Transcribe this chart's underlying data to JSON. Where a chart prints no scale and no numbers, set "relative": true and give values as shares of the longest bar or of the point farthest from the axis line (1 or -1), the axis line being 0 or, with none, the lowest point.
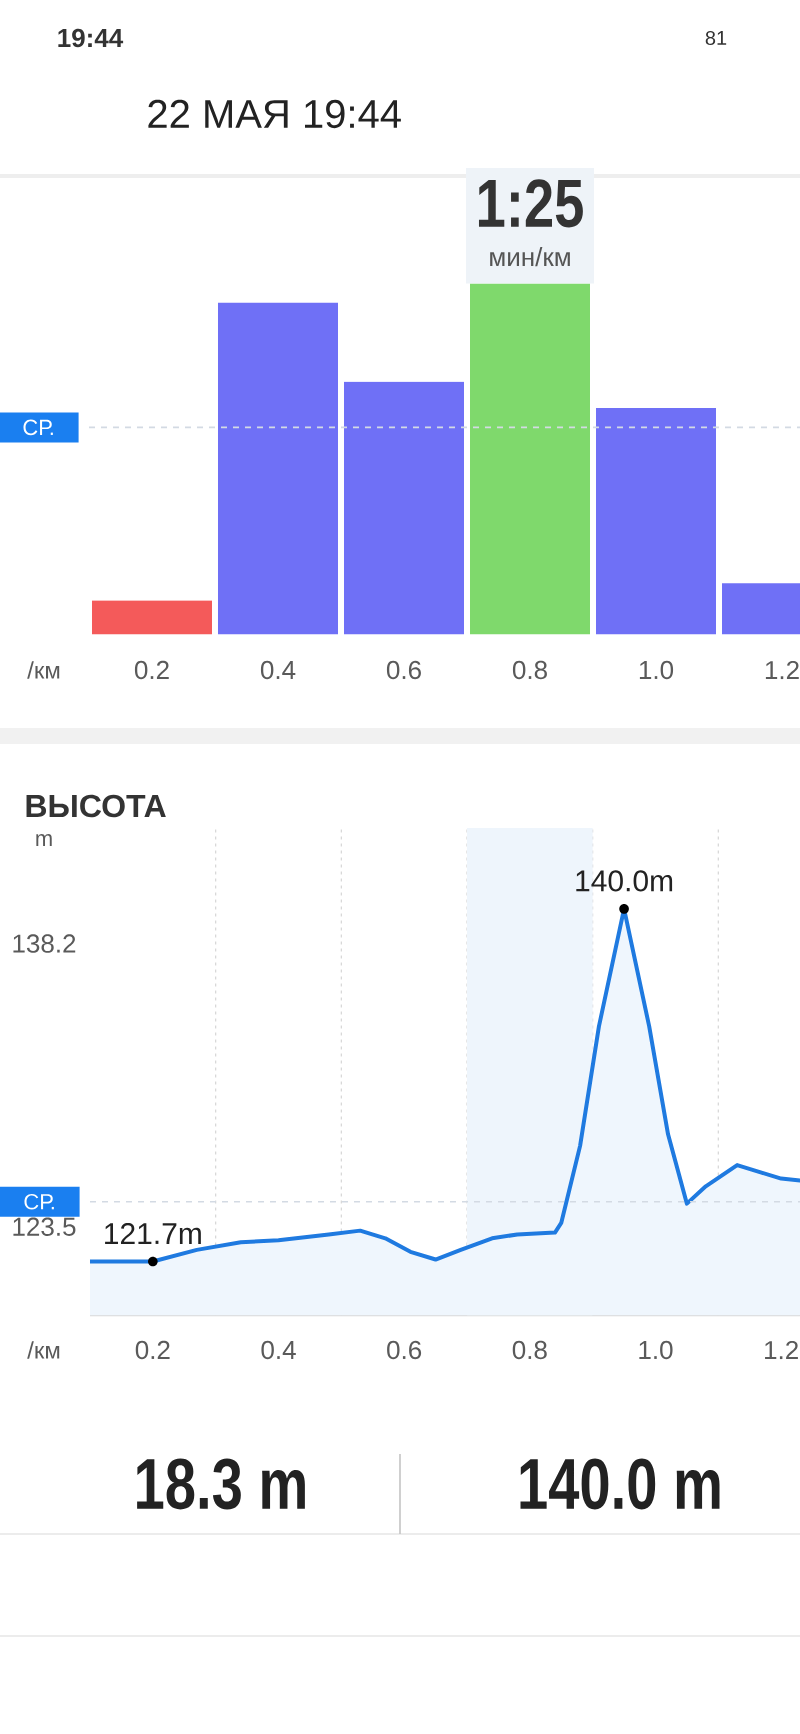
{
  "chart_data": [
    {
      "type": "bar",
      "title": "22 МАЯ 19:44",
      "xlabel": "/км",
      "categories": [
        "0.2",
        "0.4",
        "0.6",
        "0.8",
        "1.0",
        "1.2"
      ],
      "values": [
        0.097,
        0.945,
        0.72,
        1,
        0.645,
        0.146
      ],
      "colors": [
        "#f45a5a",
        "#6f70f6",
        "#6f70f6",
        "#7fd96c",
        "#6f70f6",
        "#6f70f6"
      ],
      "relative": true,
      "ref_lines": [
        {
          "axis": "y",
          "value": 0.59,
          "label": "СР.",
          "color": "#d3dae3",
          "line_style": "dashed"
        }
      ],
      "annotations": [
        "1:25",
        "мин/км",
        "19:44",
        "81"
      ]
    },
    {
      "type": "area",
      "title": "ВЫСОТА",
      "xlabel": "/км",
      "ylabel": "m",
      "color": "#1f7ae0",
      "x": [
        0.1,
        0.2,
        0.27,
        0.34,
        0.4,
        0.48,
        0.53,
        0.57,
        0.61,
        0.65,
        0.69,
        0.74,
        0.78,
        0.84,
        0.85,
        0.88,
        0.91,
        0.95,
        0.99,
        1.02,
        1.05,
        1.08,
        1.13,
        1.17,
        1.2,
        1.23
      ],
      "values": [
        121.7,
        121.7,
        122.3,
        122.7,
        122.8,
        123.1,
        123.3,
        122.9,
        122.2,
        121.8,
        122.3,
        122.9,
        123.1,
        123.2,
        123.7,
        127.7,
        133.9,
        140.0,
        133.9,
        128.3,
        124.7,
        125.6,
        126.7,
        126.3,
        126.0,
        125.9
      ],
      "xlim": [
        0.1,
        1.23
      ],
      "ylim": [
        118.9,
        144.2
      ],
      "xticks": [
        0.2,
        {
          "value": 0.3,
          "label": null
        },
        0.4,
        {
          "value": 0.5,
          "label": null
        },
        0.6,
        {
          "value": 0.7,
          "label": null
        },
        0.8,
        {
          "value": 0.9,
          "label": null
        },
        {
          "value": 1.0,
          "label": "1.0"
        },
        {
          "value": 1.1,
          "label": null
        },
        1.2
      ],
      "yticks": [
        123.5,
        138.2
      ],
      "grid": "x",
      "bands": [
        {
          "axis": "x",
          "from": 0.7,
          "to": 0.9,
          "color": "#eef5fc"
        }
      ],
      "ref_lines": [
        {
          "axis": "y",
          "value": 124.8,
          "label": "СР.",
          "color": "#d3dae3",
          "line_style": "dashed"
        }
      ],
      "annotations": [
        {
          "text": "121.7m",
          "x": 0.2,
          "y": 121.7
        },
        {
          "text": "140.0m",
          "x": 0.95,
          "y": 140.0
        },
        "18.3 m",
        "140.0 m"
      ]
    }
  ]
}
